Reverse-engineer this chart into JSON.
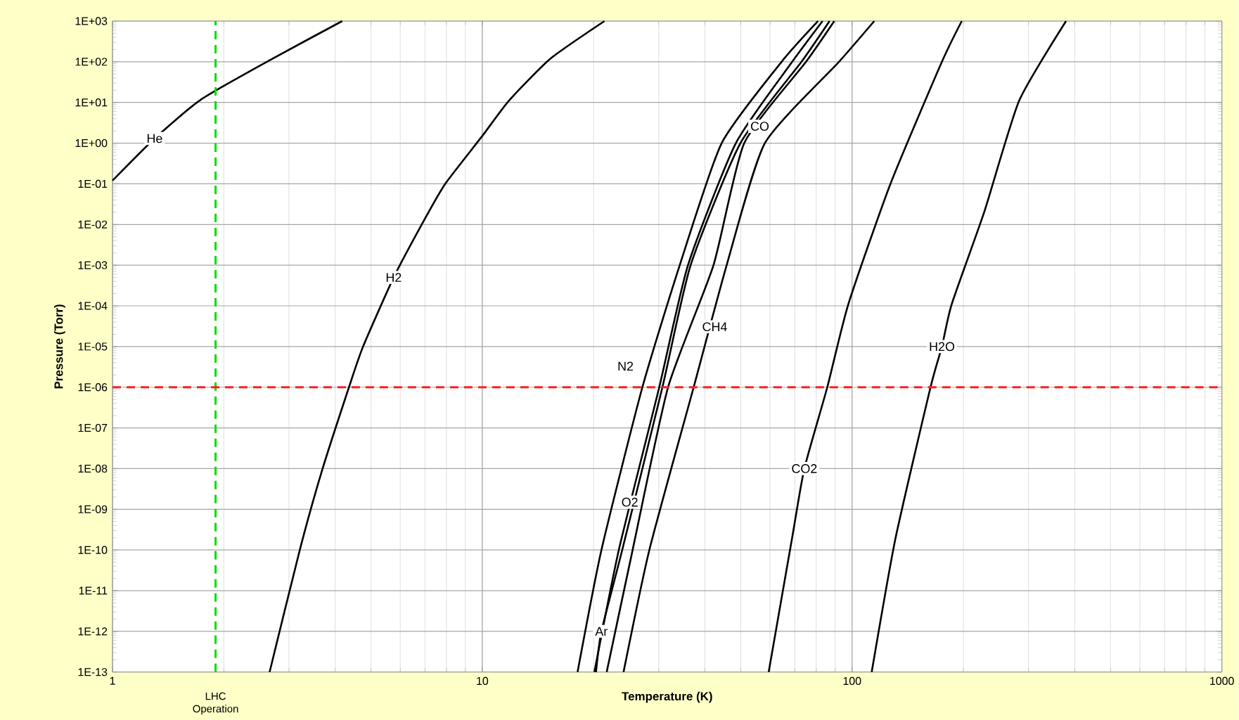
{
  "chart_data": {
    "type": "line",
    "xlabel": "Temperature (K)",
    "ylabel": "Pressure (Torr)",
    "log": "xy",
    "grid": true,
    "marker": "none",
    "line_style": "solid",
    "xlim": [
      1,
      1000
    ],
    "xticks": [
      1,
      10,
      100,
      1000
    ],
    "ylim": [
      1e-13,
      1000
    ],
    "yticks": [
      {
        "value": 1e-13,
        "label": "1E-13"
      },
      {
        "value": 1e-12,
        "label": "1E-12"
      },
      {
        "value": 1e-11,
        "label": "1E-11"
      },
      {
        "value": 1e-10,
        "label": "1E-10"
      },
      {
        "value": 1e-09,
        "label": "1E-09"
      },
      {
        "value": 1e-08,
        "label": "1E-08"
      },
      {
        "value": 1e-07,
        "label": "1E-07"
      },
      {
        "value": 1e-06,
        "label": "1E-06"
      },
      {
        "value": 1e-05,
        "label": "1E-05"
      },
      {
        "value": 0.0001,
        "label": "1E-04"
      },
      {
        "value": 0.001,
        "label": "1E-03"
      },
      {
        "value": 0.01,
        "label": "1E-02"
      },
      {
        "value": 0.1,
        "label": "1E-01"
      },
      {
        "value": 1,
        "label": "1E+00"
      },
      {
        "value": 10,
        "label": "1E+01"
      },
      {
        "value": 100,
        "label": "1E+02"
      },
      {
        "value": 1000,
        "label": "1E+03"
      }
    ],
    "series": [
      {
        "name": "He",
        "color": "#000000",
        "x": [
          1,
          1.3,
          1.74,
          2.7,
          4.18
        ],
        "values": [
          0.12,
          1.3,
          12,
          117,
          1000
        ]
      },
      {
        "name": "H2",
        "color": "#000000",
        "x": [
          2.66,
          3.21,
          3.7,
          4.36,
          4.76,
          5.76,
          6.97,
          7.94,
          10,
          11.8,
          15.3,
          21.4
        ],
        "values": [
          1e-13,
          1e-10,
          1e-08,
          1e-06,
          1e-05,
          0.0005,
          0.013,
          0.1,
          1.5,
          11,
          120,
          1000
        ]
      },
      {
        "name": "N2",
        "color": "#000000",
        "x": [
          18.1,
          21.0,
          27.1,
          34.2,
          44.4,
          64.5,
          80.9
        ],
        "values": [
          1e-13,
          1e-10,
          1e-06,
          0.001,
          1,
          100,
          1000
        ]
      },
      {
        "name": "CO",
        "color": "#000000",
        "x": [
          20.1,
          23.4,
          30.1,
          36.0,
          48.5,
          68.9,
          83.2
        ],
        "values": [
          1e-13,
          1e-10,
          1e-06,
          0.001,
          1,
          100,
          1000
        ]
      },
      {
        "name": "Ar",
        "color": "#000000",
        "x": [
          20.3,
          21.0,
          23.9,
          30.7,
          36.6,
          49.9,
          73.0,
          86.9
        ],
        "values": [
          1e-13,
          1e-12,
          1e-10,
          1e-06,
          0.001,
          1,
          100,
          1000
        ]
      },
      {
        "name": "O2",
        "color": "#000000",
        "x": [
          21.7,
          25.5,
          31.8,
          42.2,
          51.1,
          75.1,
          89.5
        ],
        "values": [
          1e-13,
          1e-10,
          1e-06,
          0.001,
          1,
          100,
          1000
        ]
      },
      {
        "name": "CH4",
        "color": "#000000",
        "x": [
          24.1,
          28.3,
          37.3,
          45.8,
          58.1,
          92.2,
          114.8
        ],
        "values": [
          1e-13,
          1e-10,
          1e-06,
          0.001,
          1,
          100,
          1000
        ]
      },
      {
        "name": "CO2",
        "color": "#000000",
        "x": [
          59.5,
          68.8,
          74.3,
          85.7,
          97.7,
          127,
          175,
          198
        ],
        "values": [
          1e-13,
          1.9e-10,
          1e-08,
          1e-06,
          0.00011,
          0.1,
          100,
          1000
        ]
      },
      {
        "name": "H2O",
        "color": "#000000",
        "x": [
          113,
          131,
          163,
          175,
          186,
          228,
          283,
          379
        ],
        "values": [
          1e-13,
          1.9e-10,
          1e-06,
          1e-05,
          0.00011,
          0.021,
          11,
          1000
        ]
      }
    ],
    "ref_lines": [
      {
        "axis": "x",
        "value": 1.9,
        "label": "LHC Operation",
        "color": "#00dd00",
        "line_style": "dashed"
      },
      {
        "axis": "y",
        "value": 1e-06,
        "color": "#ff2020",
        "line_style": "dashed"
      }
    ]
  }
}
